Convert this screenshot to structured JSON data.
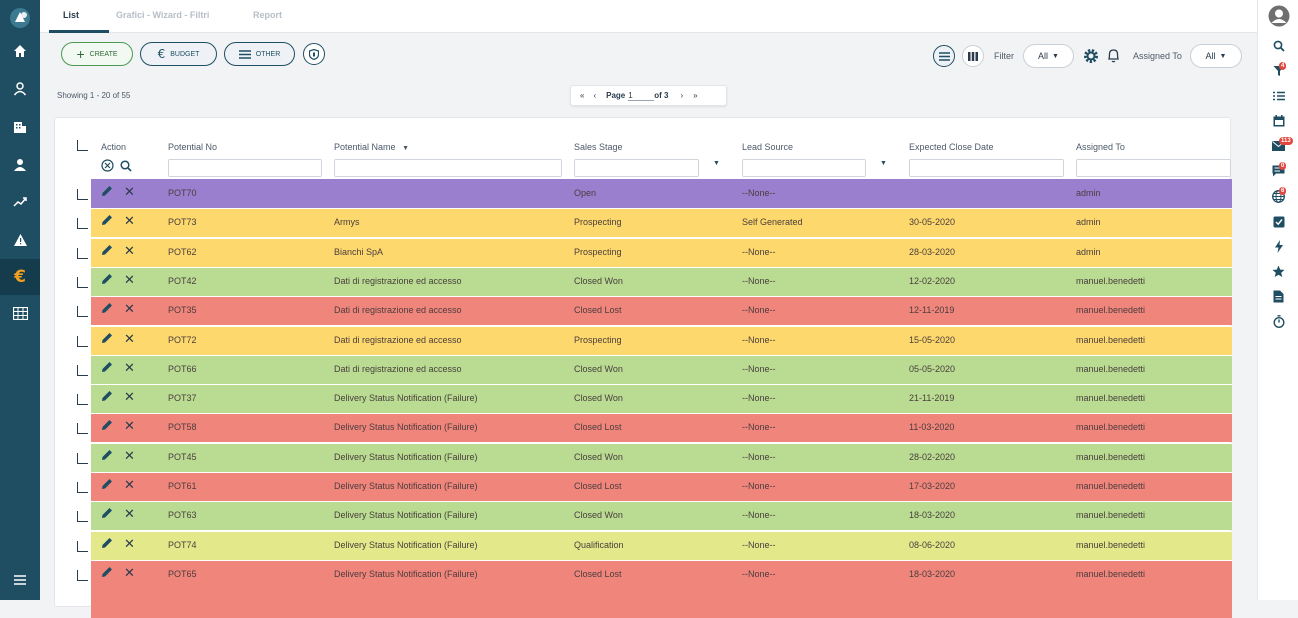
{
  "tabs": [
    {
      "label": "List"
    },
    {
      "label": "Grafici - Wizard - Filtri"
    },
    {
      "label": "Report"
    }
  ],
  "toolbar": {
    "create_label": "CREATE",
    "budget_label": "BUDGET",
    "other_label": "OTHER"
  },
  "filter": {
    "label": "Filter",
    "value": "All"
  },
  "assigned_filter": {
    "label": "Assigned To",
    "value": "All"
  },
  "showing": "Showing 1 - 20 of 55",
  "pager": {
    "page_label": "Page",
    "page_value": "1",
    "of_label": "of 3"
  },
  "columns": [
    "Action",
    "Potential No",
    "Potential Name",
    "Sales Stage",
    "Lead Source",
    "Expected Close Date",
    "Assigned To"
  ],
  "colors": {
    "purple": "#9b7fcf",
    "yellow": "#fdd86d",
    "green": "#b9dc92",
    "red": "#f0857c",
    "lightyellow": "#e3e98a",
    "sidebar": "#1f4e62",
    "accent": "#f1a01f"
  },
  "right_badges": {
    "filter": "4",
    "mail": "113",
    "chat": "0",
    "globe": "6"
  },
  "rows": [
    {
      "no": "POT70",
      "name": "",
      "stage": "Open",
      "source": "--None--",
      "date": "",
      "assigned": "admin",
      "color": "#9b7fcf"
    },
    {
      "no": "POT73",
      "name": "Armys",
      "stage": "Prospecting",
      "source": "Self Generated",
      "date": "30-05-2020",
      "assigned": "admin",
      "color": "#fdd86d"
    },
    {
      "no": "POT62",
      "name": "Bianchi SpA",
      "stage": "Prospecting",
      "source": "--None--",
      "date": "28-03-2020",
      "assigned": "admin",
      "color": "#fdd86d"
    },
    {
      "no": "POT42",
      "name": "Dati di registrazione ed accesso",
      "stage": "Closed Won",
      "source": "--None--",
      "date": "12-02-2020",
      "assigned": "manuel.benedetti",
      "color": "#b9dc92"
    },
    {
      "no": "POT35",
      "name": "Dati di registrazione ed accesso",
      "stage": "Closed Lost",
      "source": "--None--",
      "date": "12-11-2019",
      "assigned": "manuel.benedetti",
      "color": "#f0857c"
    },
    {
      "no": "POT72",
      "name": "Dati di registrazione ed accesso",
      "stage": "Prospecting",
      "source": "--None--",
      "date": "15-05-2020",
      "assigned": "manuel.benedetti",
      "color": "#fdd86d"
    },
    {
      "no": "POT66",
      "name": "Dati di registrazione ed accesso",
      "stage": "Closed Won",
      "source": "--None--",
      "date": "05-05-2020",
      "assigned": "manuel.benedetti",
      "color": "#b9dc92"
    },
    {
      "no": "POT37",
      "name": "Delivery Status Notification (Failure)",
      "stage": "Closed Won",
      "source": "--None--",
      "date": "21-11-2019",
      "assigned": "manuel.benedetti",
      "color": "#b9dc92"
    },
    {
      "no": "POT58",
      "name": "Delivery Status Notification (Failure)",
      "stage": "Closed Lost",
      "source": "--None--",
      "date": "11-03-2020",
      "assigned": "manuel.benedetti",
      "color": "#f0857c"
    },
    {
      "no": "POT45",
      "name": "Delivery Status Notification (Failure)",
      "stage": "Closed Won",
      "source": "--None--",
      "date": "28-02-2020",
      "assigned": "manuel.benedetti",
      "color": "#b9dc92"
    },
    {
      "no": "POT61",
      "name": "Delivery Status Notification (Failure)",
      "stage": "Closed Lost",
      "source": "--None--",
      "date": "17-03-2020",
      "assigned": "manuel.benedetti",
      "color": "#f0857c"
    },
    {
      "no": "POT63",
      "name": "Delivery Status Notification (Failure)",
      "stage": "Closed Won",
      "source": "--None--",
      "date": "18-03-2020",
      "assigned": "manuel.benedetti",
      "color": "#b9dc92"
    },
    {
      "no": "POT74",
      "name": "Delivery Status Notification (Failure)",
      "stage": "Qualification",
      "source": "--None--",
      "date": "08-06-2020",
      "assigned": "manuel.benedetti",
      "color": "#e3e98a"
    },
    {
      "no": "POT65",
      "name": "Delivery Status Notification (Failure)",
      "stage": "Closed Lost",
      "source": "--None--",
      "date": "18-03-2020",
      "assigned": "manuel.benedetti",
      "color": "#f0857c"
    }
  ]
}
